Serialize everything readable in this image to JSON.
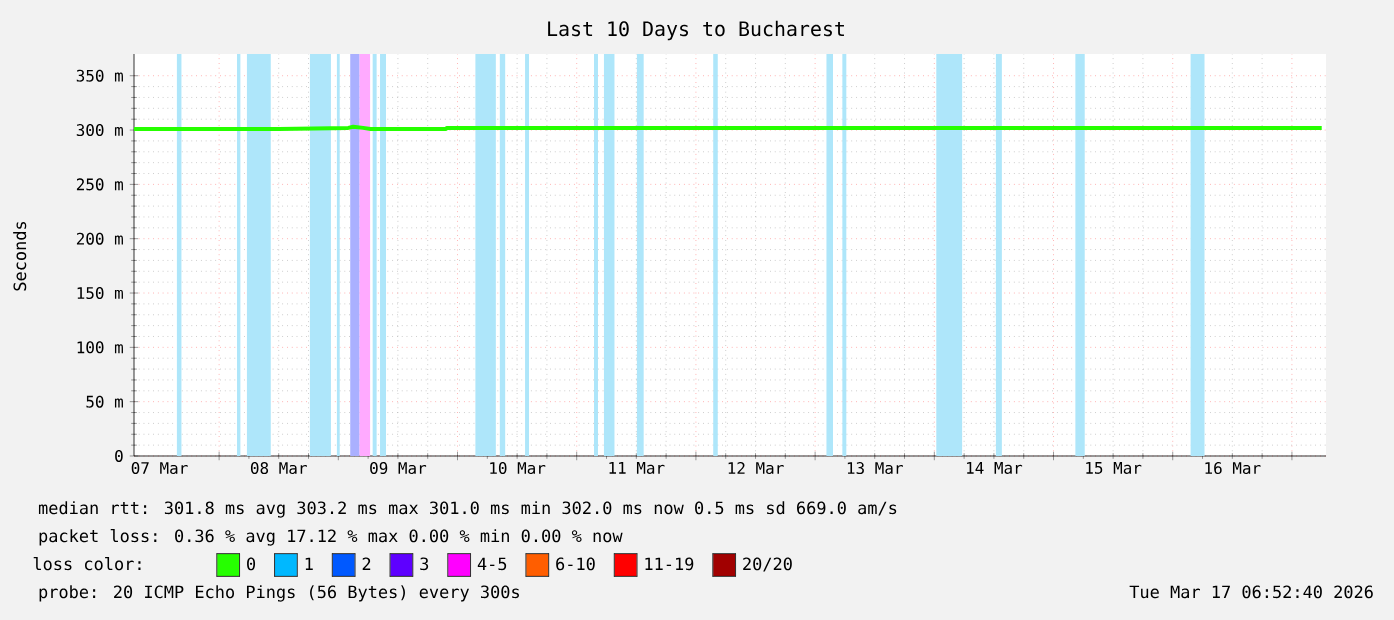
{
  "chart_data": {
    "type": "line",
    "title": "Last 10 Days to Bucharest",
    "ylabel": "Seconds",
    "legend_title": "loss color:",
    "xlim": [
      "2026-03-07T06:52",
      "2026-03-17T06:52"
    ],
    "xticks": [
      {
        "value": "2026-03-07T12:00",
        "label": "07 Mar"
      },
      {
        "value": "2026-03-08T00:00",
        "label": null
      },
      {
        "value": "2026-03-08T12:00",
        "label": "08 Mar"
      },
      {
        "value": "2026-03-09T00:00",
        "label": null
      },
      {
        "value": "2026-03-09T12:00",
        "label": "09 Mar"
      },
      {
        "value": "2026-03-10T00:00",
        "label": null
      },
      {
        "value": "2026-03-10T12:00",
        "label": "10 Mar"
      },
      {
        "value": "2026-03-11T00:00",
        "label": null
      },
      {
        "value": "2026-03-11T12:00",
        "label": "11 Mar"
      },
      {
        "value": "2026-03-12T00:00",
        "label": null
      },
      {
        "value": "2026-03-12T12:00",
        "label": "12 Mar"
      },
      {
        "value": "2026-03-13T00:00",
        "label": null
      },
      {
        "value": "2026-03-13T12:00",
        "label": "13 Mar"
      },
      {
        "value": "2026-03-14T00:00",
        "label": null
      },
      {
        "value": "2026-03-14T12:00",
        "label": "14 Mar"
      },
      {
        "value": "2026-03-15T00:00",
        "label": null
      },
      {
        "value": "2026-03-15T12:00",
        "label": "15 Mar"
      },
      {
        "value": "2026-03-16T00:00",
        "label": null
      },
      {
        "value": "2026-03-16T12:00",
        "label": "16 Mar"
      },
      {
        "value": "2026-03-17T00:00",
        "label": null
      }
    ],
    "ylim": [
      0,
      370
    ],
    "yticks": [
      {
        "value": 0,
        "label": "0"
      },
      {
        "value": 50,
        "label": "50 m"
      },
      {
        "value": 100,
        "label": "100 m"
      },
      {
        "value": 150,
        "label": "150 m"
      },
      {
        "value": 200,
        "label": "200 m"
      },
      {
        "value": 250,
        "label": "250 m"
      },
      {
        "value": 300,
        "label": "300 m"
      },
      {
        "value": 350,
        "label": "350 m"
      }
    ],
    "grid": true,
    "legend": "bottom",
    "series": [
      {
        "name": "0",
        "color": "#26ff00",
        "x": [
          "2026-03-07T06:52",
          "2026-03-08T12:00",
          "2026-03-09T02:00",
          "2026-03-09T03:00",
          "2026-03-09T05:00",
          "2026-03-09T06:30",
          "2026-03-09T21:40",
          "2026-03-09T21:50",
          "2026-03-13T00:00",
          "2026-03-17T06:00"
        ],
        "values": [
          301,
          301,
          302,
          303,
          302,
          301,
          301,
          302,
          302,
          302
        ]
      },
      {
        "name": "1",
        "color": "#00b8ff"
      },
      {
        "name": "2",
        "color": "#0059ff"
      },
      {
        "name": "3",
        "color": "#5e00ff"
      },
      {
        "name": "4-5",
        "color": "#ff00ff"
      },
      {
        "name": "6-10",
        "color": "#ff5e00"
      },
      {
        "name": "11-19",
        "color": "#ff0000"
      },
      {
        "name": "20/20",
        "color": "#a10000"
      }
    ],
    "bands": [
      {
        "axis": "x",
        "from": "2026-03-07T15:30",
        "to": "2026-03-07T16:25",
        "color": "#aee6fa"
      },
      {
        "axis": "x",
        "from": "2026-03-08T03:36",
        "to": "2026-03-08T04:17",
        "color": "#aee6fa"
      },
      {
        "axis": "x",
        "from": "2026-03-08T05:36",
        "to": "2026-03-08T10:24",
        "color": "#aee6fa"
      },
      {
        "axis": "x",
        "from": "2026-03-08T18:17",
        "to": "2026-03-08T22:31",
        "color": "#aee6fa"
      },
      {
        "axis": "x",
        "from": "2026-03-08T23:43",
        "to": "2026-03-09T00:17",
        "color": "#aee6fa"
      },
      {
        "axis": "x",
        "from": "2026-03-09T02:24",
        "to": "2026-03-09T04:17",
        "color": "#aab0ff"
      },
      {
        "axis": "x",
        "from": "2026-03-09T04:17",
        "to": "2026-03-09T06:24",
        "color": "#ffaaff"
      },
      {
        "axis": "x",
        "from": "2026-03-09T06:55",
        "to": "2026-03-09T07:43",
        "color": "#aee6fa"
      },
      {
        "axis": "x",
        "from": "2026-03-09T08:24",
        "to": "2026-03-09T09:36",
        "color": "#aee6fa"
      },
      {
        "axis": "x",
        "from": "2026-03-10T03:36",
        "to": "2026-03-10T07:43",
        "color": "#aee6fa"
      },
      {
        "axis": "x",
        "from": "2026-03-10T08:31",
        "to": "2026-03-10T09:36",
        "color": "#aee6fa"
      },
      {
        "axis": "x",
        "from": "2026-03-10T13:36",
        "to": "2026-03-10T14:24",
        "color": "#aee6fa"
      },
      {
        "axis": "x",
        "from": "2026-03-11T03:29",
        "to": "2026-03-11T04:17",
        "color": "#aee6fa"
      },
      {
        "axis": "x",
        "from": "2026-03-11T05:29",
        "to": "2026-03-11T07:36",
        "color": "#aee6fa"
      },
      {
        "axis": "x",
        "from": "2026-03-11T12:07",
        "to": "2026-03-11T13:29",
        "color": "#aee6fa"
      },
      {
        "axis": "x",
        "from": "2026-03-12T03:29",
        "to": "2026-03-12T04:24",
        "color": "#aee6fa"
      },
      {
        "axis": "x",
        "from": "2026-03-13T02:17",
        "to": "2026-03-13T03:36",
        "color": "#aee6fa"
      },
      {
        "axis": "x",
        "from": "2026-03-13T05:29",
        "to": "2026-03-13T06:17",
        "color": "#aee6fa"
      },
      {
        "axis": "x",
        "from": "2026-03-14T00:24",
        "to": "2026-03-14T05:36",
        "color": "#aee6fa"
      },
      {
        "axis": "x",
        "from": "2026-03-14T12:24",
        "to": "2026-03-14T13:36",
        "color": "#aee6fa"
      },
      {
        "axis": "x",
        "from": "2026-03-15T04:24",
        "to": "2026-03-15T06:17",
        "color": "#aee6fa"
      },
      {
        "axis": "x",
        "from": "2026-03-16T03:36",
        "to": "2026-03-16T06:24",
        "color": "#aee6fa"
      }
    ],
    "annotations": [
      "median rtt: 301.8 ms avg 303.2 ms max 301.0 ms min 302.0 ms now 0.5 ms sd 669.0 am/s",
      "packet loss: 0.36 % avg 17.12 % max 0.00 % min 0.00 % now",
      "probe: 20 ICMP Echo Pings (56 Bytes) every 300s",
      "Tue Mar 17 06:52:40 2026"
    ]
  }
}
